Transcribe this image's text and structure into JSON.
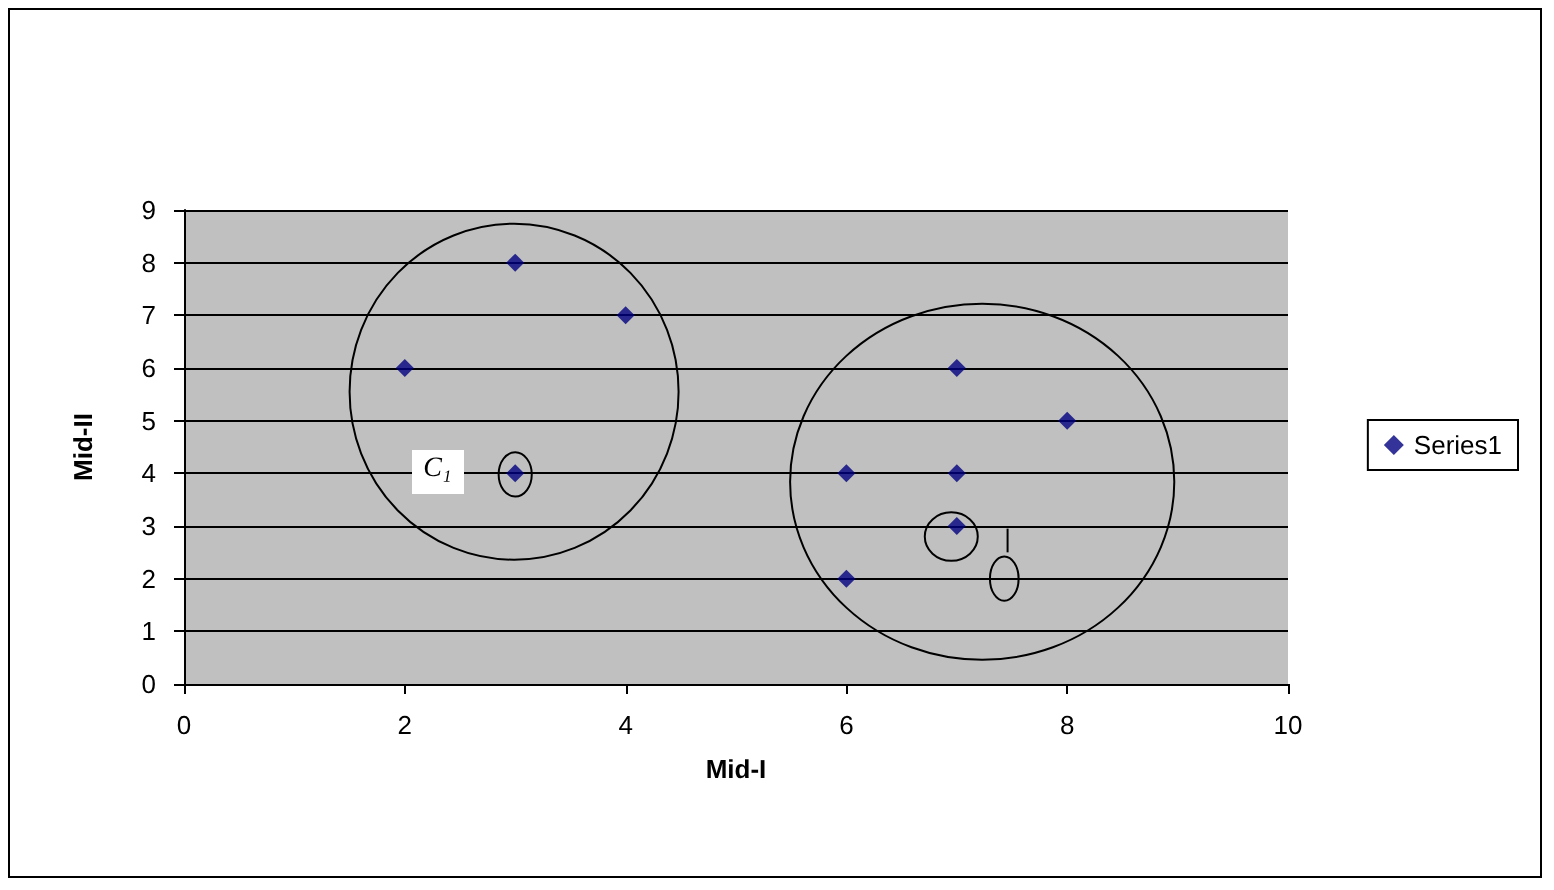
{
  "chart_data": {
    "type": "scatter",
    "xlabel": "Mid-I",
    "ylabel": "Mid-II",
    "series": [
      {
        "name": "Series1",
        "color": "#000080",
        "x": [
          2,
          3,
          4,
          3,
          6,
          6,
          7,
          7,
          7,
          8
        ],
        "values": [
          6,
          8,
          7,
          4,
          4,
          2,
          6,
          4,
          3,
          5
        ]
      }
    ],
    "annotations": [
      {
        "text": "C₁",
        "x": 3,
        "y": 4
      }
    ],
    "xlim": [
      0,
      10
    ],
    "xticks": [
      0,
      2,
      4,
      6,
      8,
      10
    ],
    "ylim": [
      0,
      9
    ],
    "yticks": [
      0,
      1,
      2,
      3,
      4,
      5,
      6,
      7,
      8,
      9
    ],
    "grid": "y",
    "legend": "right",
    "marker": "diamond"
  }
}
